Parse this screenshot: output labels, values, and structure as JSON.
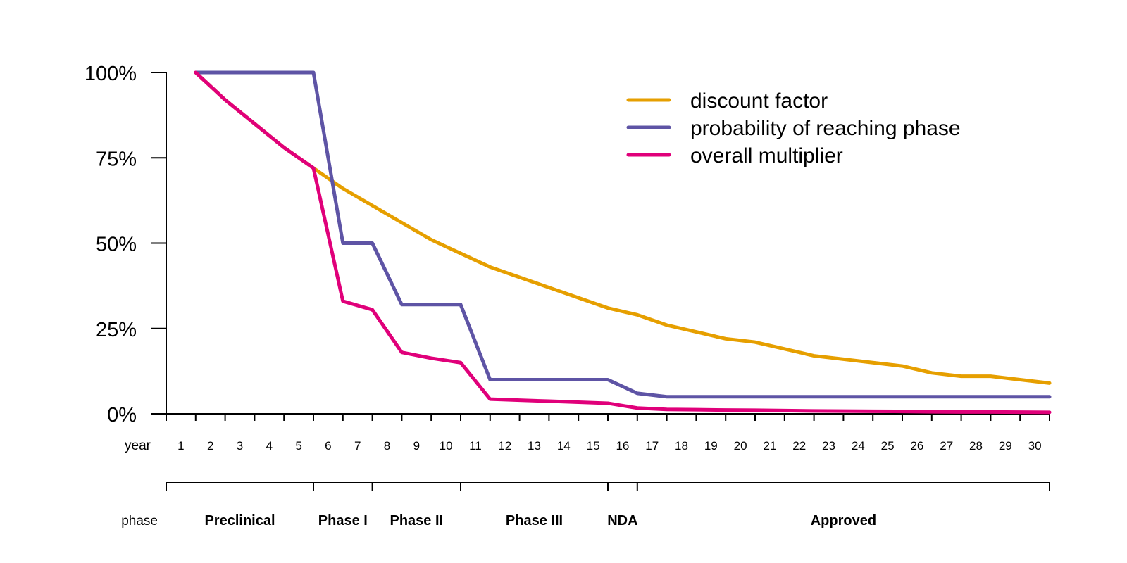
{
  "chart_data": {
    "type": "line",
    "title": "",
    "xlabel": "year",
    "ylabel": "",
    "x": [
      1,
      2,
      3,
      4,
      5,
      6,
      7,
      8,
      9,
      10,
      11,
      12,
      13,
      14,
      15,
      16,
      17,
      18,
      19,
      20,
      21,
      22,
      23,
      24,
      25,
      26,
      27,
      28,
      29,
      30
    ],
    "xlim": [
      0,
      30
    ],
    "ylim": [
      0,
      100
    ],
    "yticks": [
      0,
      25,
      50,
      75,
      100
    ],
    "ytick_labels": [
      "0%",
      "25%",
      "50%",
      "75%",
      "100%"
    ],
    "year_axis_label": "year",
    "year_tick_labels": [
      "1",
      "2",
      "3",
      "4",
      "5",
      "6",
      "7",
      "8",
      "9",
      "10",
      "11",
      "12",
      "13",
      "14",
      "15",
      "16",
      "17",
      "18",
      "19",
      "20",
      "21",
      "22",
      "23",
      "24",
      "25",
      "26",
      "27",
      "28",
      "29",
      "30"
    ],
    "phase_axis_label": "phase",
    "phases": [
      {
        "name": "Preclinical",
        "start_year": 1,
        "end_year": 5
      },
      {
        "name": "Phase I",
        "start_year": 6,
        "end_year": 7
      },
      {
        "name": "Phase II",
        "start_year": 8,
        "end_year": 10
      },
      {
        "name": "Phase III",
        "start_year": 11,
        "end_year": 15
      },
      {
        "name": "NDA",
        "start_year": 16,
        "end_year": 16
      },
      {
        "name": "Approved",
        "start_year": 17,
        "end_year": 30
      }
    ],
    "series": [
      {
        "name": "discount factor",
        "color": "#E69F00",
        "values": [
          100,
          92,
          85,
          78,
          72,
          66,
          61,
          56,
          51,
          47,
          43,
          40,
          37,
          34,
          31,
          29,
          26,
          24,
          22,
          21,
          19,
          17,
          16,
          15,
          14,
          12,
          11,
          11,
          10,
          9
        ]
      },
      {
        "name": "probability of reaching phase",
        "color": "#5E54A5",
        "values": [
          100,
          100,
          100,
          100,
          100,
          50,
          50,
          32,
          32,
          32,
          10,
          10,
          10,
          10,
          10,
          6,
          5,
          5,
          5,
          5,
          5,
          5,
          5,
          5,
          5,
          5,
          5,
          5,
          5,
          5
        ]
      },
      {
        "name": "overall multiplier",
        "color": "#E0007A",
        "values": [
          100,
          92,
          85,
          78,
          72,
          33,
          30.5,
          18,
          16.3,
          15,
          4.3,
          4,
          3.7,
          3.4,
          3.1,
          1.7,
          1.3,
          1.2,
          1.1,
          1.05,
          0.95,
          0.85,
          0.8,
          0.75,
          0.7,
          0.6,
          0.55,
          0.55,
          0.5,
          0.45
        ]
      }
    ],
    "legend": {
      "position": "top-right",
      "entries": [
        "discount factor",
        "probability of reaching phase",
        "overall multiplier"
      ]
    },
    "grid": false
  }
}
